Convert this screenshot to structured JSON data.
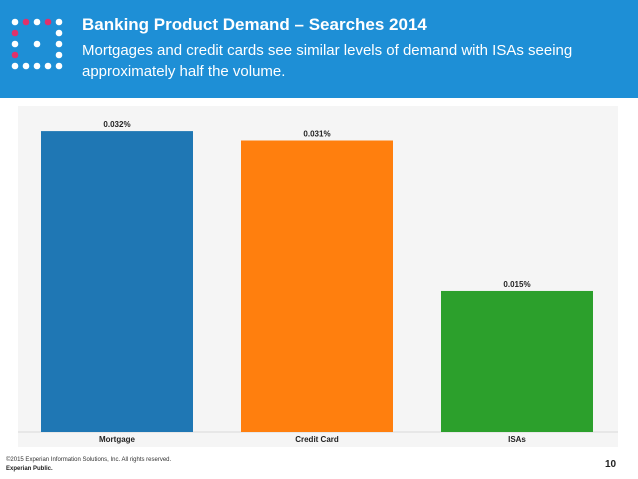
{
  "slide": {
    "title": "Banking Product Demand – Searches 2014",
    "subtitle": "Mortgages and credit cards see similar levels of demand with ISAs seeing approximately half the volume.",
    "page_number": "10",
    "footer_copyright": "©2015 Experian Information Solutions, Inc. All rights reserved.",
    "footer_classification": "Experian Public."
  },
  "colors": {
    "header_bg": "#1e8fd6",
    "logo_dots": "#ffffff",
    "logo_accent": "#e0316b"
  },
  "chart_data": {
    "type": "bar",
    "categories": [
      "Mortgage",
      "Credit Card",
      "ISAs"
    ],
    "values": [
      0.032,
      0.031,
      0.015
    ],
    "data_labels": [
      "0.032%",
      "0.031%",
      "0.015%"
    ],
    "colors": [
      "#1f77b4",
      "#ff7f0e",
      "#2ca02c"
    ],
    "ylim": [
      0,
      0.0335
    ],
    "grid": false,
    "legend": "none"
  }
}
